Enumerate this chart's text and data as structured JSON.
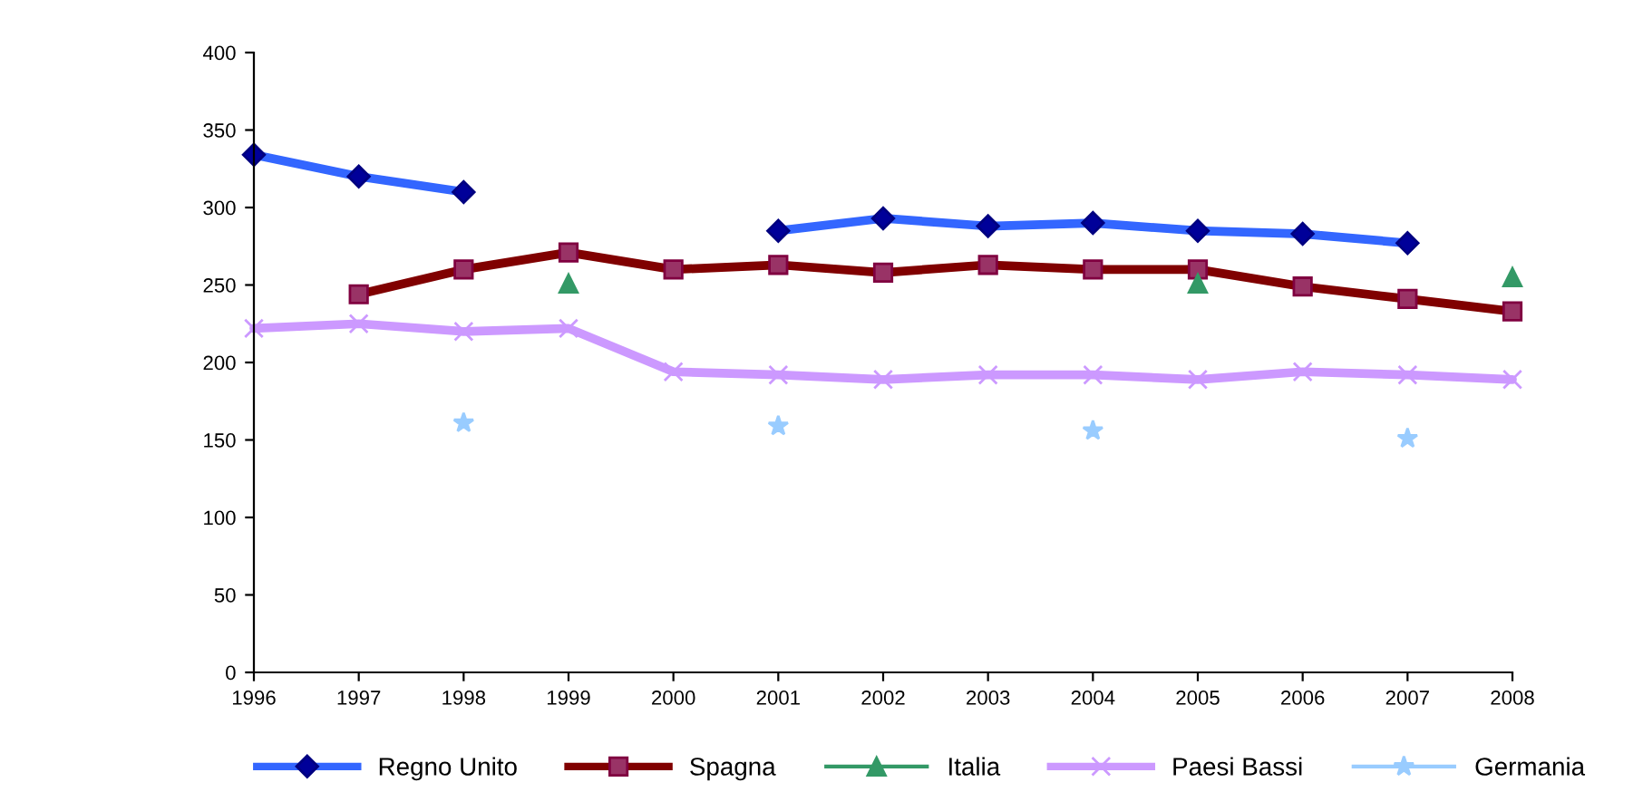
{
  "chart_data": {
    "type": "line",
    "categories": [
      "1996",
      "1997",
      "1998",
      "1999",
      "2000",
      "2001",
      "2002",
      "2003",
      "2004",
      "2005",
      "2006",
      "2007",
      "2008"
    ],
    "ylim": [
      0,
      400
    ],
    "yticks": [
      0,
      50,
      100,
      150,
      200,
      250,
      300,
      350,
      400
    ],
    "grid": false,
    "legend": "bottom",
    "series": [
      {
        "name": "Regno Unito",
        "color": "#3366ff",
        "marker": "diamond",
        "values": [
          334,
          320,
          310,
          null,
          null,
          285,
          293,
          288,
          290,
          285,
          283,
          277,
          null
        ]
      },
      {
        "name": "Spagna",
        "color": "#800000",
        "marker": "square",
        "values": [
          null,
          244,
          260,
          271,
          260,
          263,
          258,
          263,
          260,
          260,
          249,
          241,
          233
        ]
      },
      {
        "name": "Italia",
        "type": "scatter",
        "color": "#339966",
        "marker": "triangle",
        "values": [
          null,
          null,
          null,
          251,
          null,
          null,
          null,
          null,
          null,
          251,
          null,
          null,
          255
        ]
      },
      {
        "name": "Paesi Bassi",
        "color": "#cc99ff",
        "marker": "cross",
        "values": [
          222,
          225,
          220,
          222,
          194,
          192,
          189,
          192,
          192,
          189,
          194,
          192,
          189
        ]
      },
      {
        "name": "Germania",
        "type": "scatter",
        "color": "#99ccff",
        "marker": "star",
        "values": [
          null,
          null,
          161,
          null,
          null,
          159,
          null,
          null,
          156,
          null,
          null,
          151,
          null
        ]
      }
    ]
  }
}
